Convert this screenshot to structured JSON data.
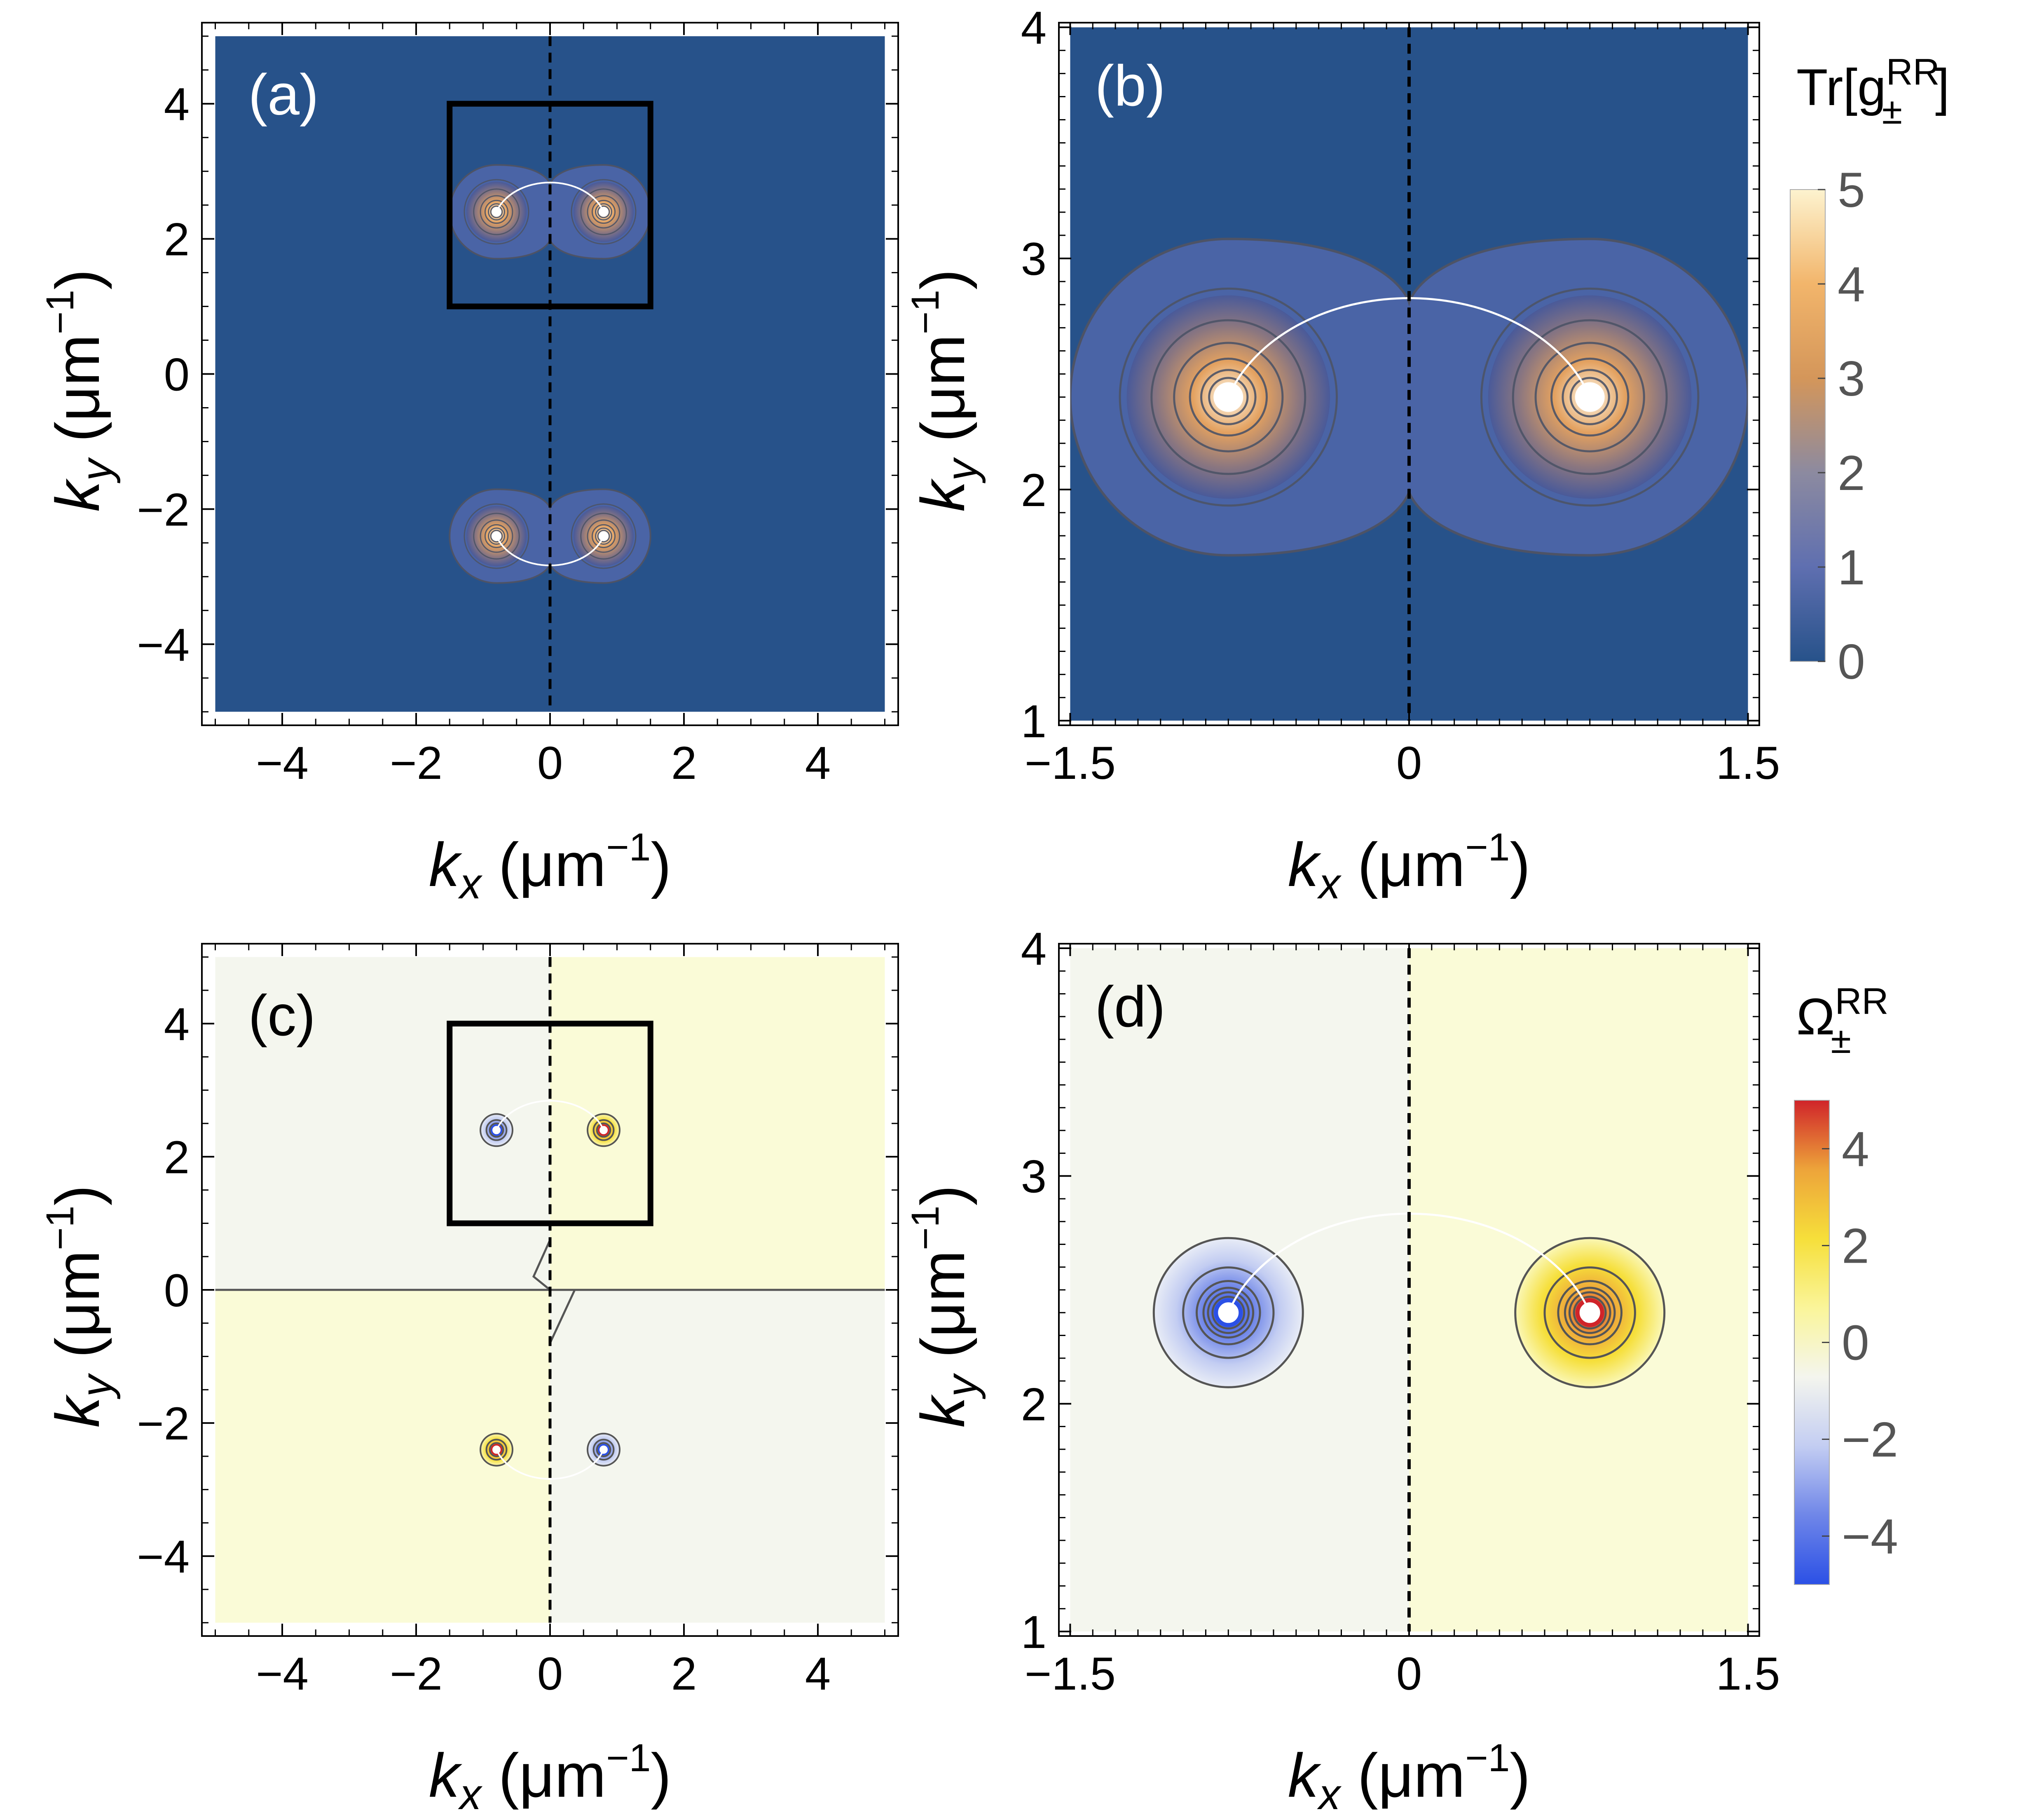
{
  "figure": {
    "colors": {
      "metric_bg": "#27528a",
      "metric_contour": "#4d5366",
      "berry_left": "#f4f6ee",
      "berry_right": "#fafbd7",
      "berry_contour": "#555555",
      "frame": "#000000"
    }
  },
  "chart_data": [
    {
      "panel": "(a)",
      "type": "heatmap",
      "title": "",
      "xlabel_sym": "k",
      "xlabel_sub": "x",
      "xlabel_unit_pre": " (μm",
      "xlabel_unit_exp": "−1",
      "xlabel_unit_post": ")",
      "ylabel_sym": "k",
      "ylabel_sub": "y",
      "ylabel_unit_pre": " (μm",
      "ylabel_unit_exp": "−1",
      "ylabel_unit_post": ")",
      "xlim": [
        -5.2,
        5.2
      ],
      "ylim": [
        -5.2,
        5.2
      ],
      "data_extent": [
        -5,
        5
      ],
      "xticks": [
        -4,
        -2,
        0,
        2,
        4
      ],
      "xtick_labels": [
        "−4",
        "−2",
        "0",
        "2",
        "4"
      ],
      "yticks": [
        -4,
        -2,
        0,
        2,
        4
      ],
      "ytick_labels": [
        "−4",
        "−2",
        "0",
        "2",
        "4"
      ],
      "quantity": "Tr[g±RR]",
      "singular_points": [
        [
          -0.8,
          2.4
        ],
        [
          0.8,
          2.4
        ],
        [
          -0.8,
          -2.4
        ],
        [
          0.8,
          -2.4
        ]
      ],
      "dashed_line_x": 0,
      "inset_box": {
        "x": [
          -1.5,
          1.5
        ],
        "y": [
          1,
          4
        ]
      }
    },
    {
      "panel": "(b)",
      "type": "heatmap",
      "title": "",
      "xlabel_sym": "k",
      "xlabel_sub": "x",
      "xlabel_unit_pre": " (μm",
      "xlabel_unit_exp": "−1",
      "xlabel_unit_post": ")",
      "ylabel_sym": "k",
      "ylabel_sub": "y",
      "ylabel_unit_pre": " (μm",
      "ylabel_unit_exp": "−1",
      "ylabel_unit_post": ")",
      "xlim": [
        -1.55,
        1.55
      ],
      "ylim": [
        0.98,
        4.02
      ],
      "data_extent_x": [
        -1.5,
        1.5
      ],
      "data_extent_y": [
        1,
        4
      ],
      "xticks": [
        -1.5,
        0,
        1.5
      ],
      "xtick_labels": [
        "−1.5",
        "0",
        "1.5"
      ],
      "yticks": [
        1,
        2,
        3,
        4
      ],
      "ytick_labels": [
        "1",
        "2",
        "3",
        "4"
      ],
      "quantity": "Tr[g±RR]",
      "singular_points": [
        [
          -0.8,
          2.4
        ],
        [
          0.8,
          2.4
        ]
      ],
      "dashed_line_x": 0,
      "colorbar": {
        "title_main": "Tr[g",
        "title_sup": "RR",
        "title_sub": "±",
        "title_end": "]",
        "range": [
          0,
          5
        ],
        "ticks": [
          0,
          1,
          2,
          3,
          4,
          5
        ],
        "tick_labels": [
          "0",
          "1",
          "2",
          "3",
          "4",
          "5"
        ],
        "stops": [
          "#27528a",
          "#5f6fb0",
          "#8c8aa0",
          "#d4965a",
          "#f2b56b",
          "#fdf3cf"
        ]
      }
    },
    {
      "panel": "(c)",
      "type": "heatmap",
      "title": "",
      "xlabel_sym": "k",
      "xlabel_sub": "x",
      "xlabel_unit_pre": " (μm",
      "xlabel_unit_exp": "−1",
      "xlabel_unit_post": ")",
      "ylabel_sym": "k",
      "ylabel_sub": "y",
      "ylabel_unit_pre": " (μm",
      "ylabel_unit_exp": "−1",
      "ylabel_unit_post": ")",
      "xlim": [
        -5.2,
        5.2
      ],
      "ylim": [
        -5.2,
        5.2
      ],
      "data_extent": [
        -5,
        5
      ],
      "xticks": [
        -4,
        -2,
        0,
        2,
        4
      ],
      "xtick_labels": [
        "−4",
        "−2",
        "0",
        "2",
        "4"
      ],
      "yticks": [
        -4,
        -2,
        0,
        2,
        4
      ],
      "ytick_labels": [
        "−4",
        "−2",
        "0",
        "2",
        "4"
      ],
      "quantity": "Ω±RR",
      "singular_points": [
        {
          "x": -0.8,
          "y": 2.4,
          "sign": -1
        },
        {
          "x": 0.8,
          "y": 2.4,
          "sign": 1
        },
        {
          "x": -0.8,
          "y": -2.4,
          "sign": 1
        },
        {
          "x": 0.8,
          "y": -2.4,
          "sign": -1
        }
      ],
      "dashed_line_x": 0,
      "inset_box": {
        "x": [
          -1.5,
          1.5
        ],
        "y": [
          1,
          4
        ]
      }
    },
    {
      "panel": "(d)",
      "type": "heatmap",
      "title": "",
      "xlabel_sym": "k",
      "xlabel_sub": "x",
      "xlabel_unit_pre": " (μm",
      "xlabel_unit_exp": "−1",
      "xlabel_unit_post": ")",
      "ylabel_sym": "k",
      "ylabel_sub": "y",
      "ylabel_unit_pre": " (μm",
      "ylabel_unit_exp": "−1",
      "ylabel_unit_post": ")",
      "xlim": [
        -1.55,
        1.55
      ],
      "ylim": [
        0.98,
        4.02
      ],
      "data_extent_x": [
        -1.5,
        1.5
      ],
      "data_extent_y": [
        1,
        4
      ],
      "xticks": [
        -1.5,
        0,
        1.5
      ],
      "xtick_labels": [
        "−1.5",
        "0",
        "1.5"
      ],
      "yticks": [
        1,
        2,
        3,
        4
      ],
      "ytick_labels": [
        "1",
        "2",
        "3",
        "4"
      ],
      "quantity": "Ω±RR",
      "singular_points": [
        {
          "x": -0.8,
          "y": 2.4,
          "sign": -1
        },
        {
          "x": 0.8,
          "y": 2.4,
          "sign": 1
        }
      ],
      "dashed_line_x": 0,
      "colorbar": {
        "title_main": "Ω",
        "title_sup": "RR",
        "title_sub": "±",
        "title_end": "",
        "range": [
          -5,
          5
        ],
        "ticks": [
          -4,
          -2,
          0,
          2,
          4
        ],
        "tick_labels": [
          "−4",
          "−2",
          "0",
          "2",
          "4"
        ],
        "stops": [
          "#2b50e6",
          "#6f86e8",
          "#c3cdf2",
          "#f4f5ee",
          "#faf59a",
          "#f6df3a",
          "#eda43a",
          "#d0242a"
        ]
      }
    }
  ]
}
